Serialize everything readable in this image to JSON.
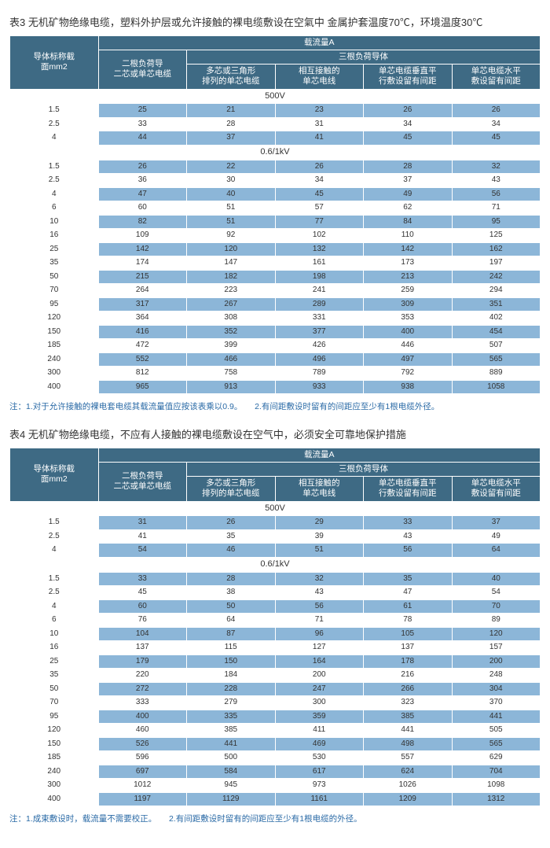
{
  "colors": {
    "header_bg": "#3e6a84",
    "header_fg": "#ffffff",
    "band_bg": "#8cb6d8",
    "page_bg": "#ffffff",
    "note_fg": "#2a6aa6"
  },
  "header_labels": {
    "col_size": "导体标称截\n面mm2",
    "current_a": "载流量A",
    "two_cond": "二根负荷导\n二芯或单芯电缆",
    "three_cond": "三根负荷导体",
    "c1": "多芯或三角形\n排列的单芯电缆",
    "c2": "相互接触的\n单芯电线",
    "c3": "单芯电缆垂直平\n行敷设留有间距",
    "c4": "单芯电缆水平\n敷设留有间距"
  },
  "tables": [
    {
      "title": "表3 无机矿物绝缘电缆，塑料外护层或允许接触的裸电缆敷设在空氣中  金属护套温度70℃，环境温度30℃",
      "sections": [
        {
          "label": "500V",
          "rows": [
            [
              "1.5",
              "25",
              "21",
              "23",
              "26",
              "26"
            ],
            [
              "2.5",
              "33",
              "28",
              "31",
              "34",
              "34"
            ],
            [
              "4",
              "44",
              "37",
              "41",
              "45",
              "45"
            ]
          ]
        },
        {
          "label": "0.6/1kV",
          "rows": [
            [
              "1.5",
              "26",
              "22",
              "26",
              "28",
              "32"
            ],
            [
              "2.5",
              "36",
              "30",
              "34",
              "37",
              "43"
            ],
            [
              "4",
              "47",
              "40",
              "45",
              "49",
              "56"
            ],
            [
              "6",
              "60",
              "51",
              "57",
              "62",
              "71"
            ],
            [
              "10",
              "82",
              "51",
              "77",
              "84",
              "95"
            ],
            [
              "16",
              "109",
              "92",
              "102",
              "110",
              "125"
            ],
            [
              "25",
              "142",
              "120",
              "132",
              "142",
              "162"
            ],
            [
              "35",
              "174",
              "147",
              "161",
              "173",
              "197"
            ],
            [
              "50",
              "215",
              "182",
              "198",
              "213",
              "242"
            ],
            [
              "70",
              "264",
              "223",
              "241",
              "259",
              "294"
            ],
            [
              "95",
              "317",
              "267",
              "289",
              "309",
              "351"
            ],
            [
              "120",
              "364",
              "308",
              "331",
              "353",
              "402"
            ],
            [
              "150",
              "416",
              "352",
              "377",
              "400",
              "454"
            ],
            [
              "185",
              "472",
              "399",
              "426",
              "446",
              "507"
            ],
            [
              "240",
              "552",
              "466",
              "496",
              "497",
              "565"
            ],
            [
              "300",
              "812",
              "758",
              "789",
              "792",
              "889"
            ],
            [
              "400",
              "965",
              "913",
              "933",
              "938",
              "1058"
            ]
          ]
        }
      ],
      "note": "注：1.对于允许接触的裸电套电缆其载流量值应按该表乘以0.9。　　2.有间距敷设时留有的间距应至少有1根电缆外径。"
    },
    {
      "title": "表4 无机矿物绝缘电缆，不应有人接触的裸电缆敷设在空气中，必须安全可靠地保护措施",
      "sections": [
        {
          "label": "500V",
          "rows": [
            [
              "1.5",
              "31",
              "26",
              "29",
              "33",
              "37"
            ],
            [
              "2.5",
              "41",
              "35",
              "39",
              "43",
              "49"
            ],
            [
              "4",
              "54",
              "46",
              "51",
              "56",
              "64"
            ]
          ]
        },
        {
          "label": "0.6/1kV",
          "rows": [
            [
              "1.5",
              "33",
              "28",
              "32",
              "35",
              "40"
            ],
            [
              "2.5",
              "45",
              "38",
              "43",
              "47",
              "54"
            ],
            [
              "4",
              "60",
              "50",
              "56",
              "61",
              "70"
            ],
            [
              "6",
              "76",
              "64",
              "71",
              "78",
              "89"
            ],
            [
              "10",
              "104",
              "87",
              "96",
              "105",
              "120"
            ],
            [
              "16",
              "137",
              "115",
              "127",
              "137",
              "157"
            ],
            [
              "25",
              "179",
              "150",
              "164",
              "178",
              "200"
            ],
            [
              "35",
              "220",
              "184",
              "200",
              "216",
              "248"
            ],
            [
              "50",
              "272",
              "228",
              "247",
              "266",
              "304"
            ],
            [
              "70",
              "333",
              "279",
              "300",
              "323",
              "370"
            ],
            [
              "95",
              "400",
              "335",
              "359",
              "385",
              "441"
            ],
            [
              "120",
              "460",
              "385",
              "411",
              "441",
              "505"
            ],
            [
              "150",
              "526",
              "441",
              "469",
              "498",
              "565"
            ],
            [
              "185",
              "596",
              "500",
              "530",
              "557",
              "629"
            ],
            [
              "240",
              "697",
              "584",
              "617",
              "624",
              "704"
            ],
            [
              "300",
              "1012",
              "945",
              "973",
              "1026",
              "1098"
            ],
            [
              "400",
              "1197",
              "1129",
              "1161",
              "1209",
              "1312"
            ]
          ]
        }
      ],
      "note": "注：1.成束敷设时，载流量不需要校正。　　2.有间距敷设时留有的间距应至少有1根电缆的外径。"
    }
  ]
}
